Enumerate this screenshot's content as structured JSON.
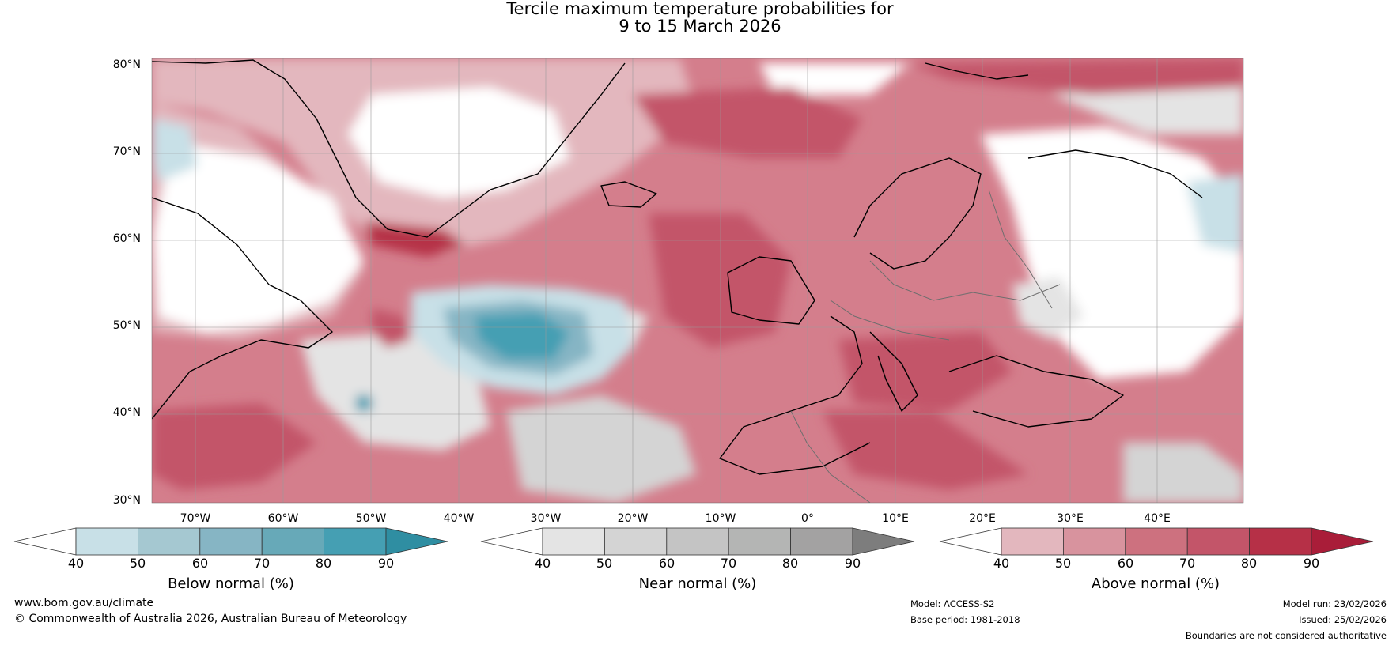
{
  "title_line1": "Tercile maximum temperature probabilities for",
  "title_line2": "9 to 15 March 2026",
  "lat_labels": [
    "80°N",
    "70°N",
    "60°N",
    "50°N",
    "40°N",
    "30°N"
  ],
  "lon_labels": [
    "70°W",
    "60°W",
    "50°W",
    "40°W",
    "30°W",
    "20°W",
    "10°W",
    "0°",
    "10°E",
    "20°E",
    "30°E",
    "40°E"
  ],
  "colorbars": [
    {
      "name": "below",
      "label": "Below normal (%)",
      "ticks": [
        "40",
        "50",
        "60",
        "70",
        "80",
        "90"
      ],
      "colors": [
        "#ffffff",
        "#c8e0e7",
        "#a5c8d1",
        "#86b5c4",
        "#67a9b8",
        "#459fb3",
        "#2f8ea2"
      ]
    },
    {
      "name": "near",
      "label": "Near normal (%)",
      "ticks": [
        "40",
        "50",
        "60",
        "70",
        "80",
        "90"
      ],
      "colors": [
        "#ffffff",
        "#e4e4e4",
        "#d4d4d4",
        "#c4c4c4",
        "#b4b5b4",
        "#a3a2a2",
        "#7d7d7d"
      ]
    },
    {
      "name": "above",
      "label": "Above normal (%)",
      "ticks": [
        "40",
        "50",
        "60",
        "70",
        "80",
        "90"
      ],
      "colors": [
        "#ffffff",
        "#e3b7be",
        "#d8939e",
        "#cd717f",
        "#c35569",
        "#b63047",
        "#a91d39"
      ]
    }
  ],
  "footer": {
    "url": "www.bom.gov.au/climate",
    "copyright": "© Commonwealth of Australia 2026, Australian Bureau of Meteorology",
    "model": "Model: ACCESS-S2",
    "base_period": "Base period: 1981-2018",
    "model_run": "Model run: 23/02/2026",
    "issued": "Issued: 25/02/2026",
    "disclaimer": "Boundaries are not considered authoritative"
  }
}
